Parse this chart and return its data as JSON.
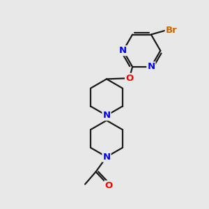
{
  "bg_color": "#e8e8e8",
  "bond_color": "#1a1a1a",
  "N_color": "#0000ff",
  "O_color": "#ff0000",
  "Br_color": "#cc6600",
  "line_width": 1.6,
  "font_size": 9.5,
  "fig_size": [
    3.0,
    3.0
  ],
  "dpi": 100,
  "xlim": [
    0,
    10
  ],
  "ylim": [
    0,
    10
  ]
}
